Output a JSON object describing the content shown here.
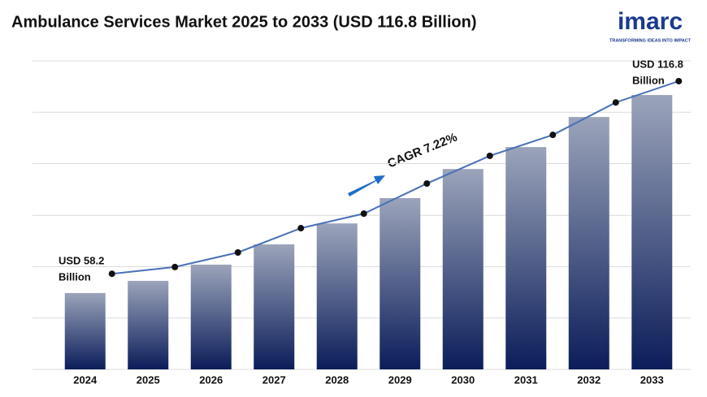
{
  "chart_data": {
    "type": "bar",
    "title": "Ambulance Services Market 2025 to 2033 (USD 116.8 Billion)",
    "categories": [
      "2024",
      "2025",
      "2026",
      "2027",
      "2028",
      "2029",
      "2030",
      "2031",
      "2032",
      "2033"
    ],
    "values": [
      58.2,
      61.8,
      66.6,
      72.6,
      78.8,
      86.3,
      94.9,
      101.4,
      110.3,
      116.8
    ],
    "trend_values": [
      63.9,
      65.9,
      70.2,
      77.4,
      81.7,
      90.6,
      98.8,
      105.0,
      114.6,
      120.9
    ],
    "bar_color_top": "#9ba4ba",
    "bar_color_bottom": "#0b1d5a",
    "trend_color": "#4a70b8",
    "ylim": [
      35.6,
      126.9
    ],
    "yticks": [
      35.6,
      50.8,
      66.0,
      81.2,
      96.5,
      111.7,
      126.9
    ],
    "grid": true,
    "show_ytick_labels": false,
    "annotations": [
      {
        "lines": [
          "USD 58.2",
          "Billion"
        ],
        "category": 0
      },
      {
        "lines": [
          "USD 116.8",
          "Billion"
        ],
        "category": 9
      }
    ],
    "cagr_label": "CAGR 7.22%"
  },
  "logo": {
    "name": "imarc",
    "tagline": "TRANSFORMING IDEAS INTO IMPACT"
  }
}
